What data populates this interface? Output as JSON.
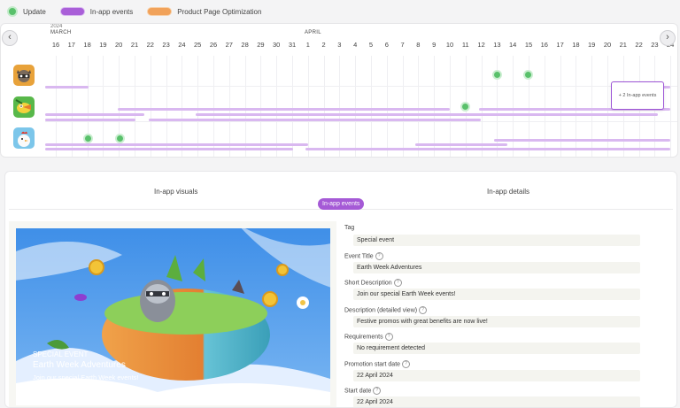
{
  "legend": [
    {
      "label": "Update",
      "kind": "dot",
      "color": "#59c16b"
    },
    {
      "label": "In-app events",
      "kind": "pill",
      "color": "#a95fd8"
    },
    {
      "label": "Product Page Optimization",
      "kind": "pill",
      "color": "#f1a25a"
    }
  ],
  "timeline": {
    "year": "2024",
    "months": [
      "MARCH",
      "APRIL"
    ],
    "days": [
      "16",
      "17",
      "18",
      "19",
      "20",
      "21",
      "22",
      "23",
      "24",
      "25",
      "26",
      "27",
      "28",
      "29",
      "30",
      "31",
      "1",
      "2",
      "3",
      "4",
      "5",
      "6",
      "7",
      "8",
      "9",
      "10",
      "11",
      "12",
      "13",
      "14",
      "15",
      "16",
      "17",
      "18",
      "19",
      "20",
      "21",
      "22",
      "23",
      "24"
    ],
    "tooltip": "+ 2 In-app events",
    "prev_icon": "chevron-left-icon",
    "next_icon": "chevron-right-icon",
    "apps": [
      "raccoon-game-icon",
      "bird-game-icon",
      "rooster-game-icon"
    ]
  },
  "tabs": {
    "left": "In-app visuals",
    "right": "In-app details",
    "active_badge": "In-app events"
  },
  "visual": {
    "kicker": "SPECIAL EVENT",
    "title": "Earth Week Adventures",
    "subtitle": "Join our special Earth Week events!"
  },
  "fields": [
    {
      "label": "Tag",
      "value": "Special event",
      "help": false
    },
    {
      "label": "Event Title",
      "value": "Earth Week Adventures",
      "help": true
    },
    {
      "label": "Short Description",
      "value": "Join our special Earth Week events!",
      "help": true
    },
    {
      "label": "Description (detailed view)",
      "value": "Festive promos with great benefits are now live!",
      "help": true
    },
    {
      "label": "Requirements",
      "value": "No requirement detected",
      "help": true
    },
    {
      "label": "Promotion start date",
      "value": "22 April 2024",
      "help": true
    },
    {
      "label": "Start date",
      "value": "22 April 2024",
      "help": true
    }
  ]
}
